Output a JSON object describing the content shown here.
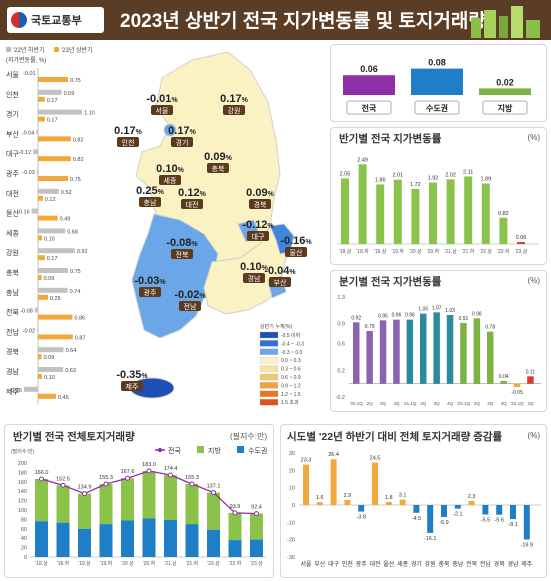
{
  "header": {
    "org": "국토교통부",
    "title": "2023년 상반기 전국 지가변동률 및 토지거래량"
  },
  "regional": {
    "legend": [
      "'22년 하반기",
      "'23년 상반기"
    ],
    "unit": "(지가변동률, %)",
    "regions": [
      "서울",
      "인천",
      "경기",
      "부산",
      "대구",
      "광주",
      "대전",
      "울산",
      "세종",
      "강원",
      "충북",
      "충남",
      "전북",
      "전남",
      "경북",
      "경남",
      "제주"
    ],
    "h2022": [
      -0.01,
      0.59,
      1.1,
      -0.04,
      -0.12,
      -0.03,
      0.52,
      -0.16,
      0.68,
      0.92,
      0.75,
      0.74,
      -0.08,
      -0.02,
      0.64,
      0.63,
      -0.35
    ],
    "h2023": [
      0.75,
      0.17,
      0.17,
      0.82,
      0.82,
      0.75,
      0.12,
      0.49,
      0.1,
      0.17,
      0.09,
      0.25,
      0.86,
      0.87,
      0.09,
      0.1,
      0.45
    ],
    "labels2022": [
      "-0.01",
      "0.59",
      "1.10",
      "-0.04",
      "-0.12",
      "-0.03",
      "0.52",
      "-0.16",
      "0.68",
      "0.92",
      "0.75",
      "0.74",
      "-0.08",
      "-0.02",
      "0.64",
      "0.63",
      "-0.35"
    ],
    "labels2023": [
      "0.75",
      "0.17",
      "0.17",
      "0.82",
      "0.82",
      "0.75",
      "0.12",
      "0.49",
      "0.10",
      "0.17",
      "0.09",
      "0.25",
      "0.86",
      "0.87",
      "0.09",
      "0.10",
      "0.45"
    ]
  },
  "map": {
    "labels": [
      {
        "name": "서울",
        "value": "-0.01"
      },
      {
        "name": "인천",
        "value": "0.17"
      },
      {
        "name": "경기",
        "value": "0.17"
      },
      {
        "name": "강원",
        "value": "0.17"
      },
      {
        "name": "세종",
        "value": "0.10"
      },
      {
        "name": "충북",
        "value": "0.09"
      },
      {
        "name": "충남",
        "value": "0.25"
      },
      {
        "name": "대전",
        "value": "0.12"
      },
      {
        "name": "경북",
        "value": "0.09"
      },
      {
        "name": "대구",
        "value": "-0.12"
      },
      {
        "name": "전북",
        "value": "-0.08"
      },
      {
        "name": "울산",
        "value": "-0.16"
      },
      {
        "name": "광주",
        "value": "-0.03"
      },
      {
        "name": "전남",
        "value": "-0.02"
      },
      {
        "name": "경남",
        "value": "0.10"
      },
      {
        "name": "부산",
        "value": "-0.04"
      },
      {
        "name": "제주",
        "value": "-0.35"
      }
    ],
    "pct": "%",
    "legend_title": "상반기 누계(%)",
    "legend_items": [
      "-0.5 이하",
      "-0.4 ~ -0.3",
      "-0.3 ~ 0.0",
      "0.0 ~ 0.3",
      "0.3 ~ 0.6",
      "0.6 ~ 0.9",
      "0.9 ~ 1.2",
      "1.2 ~ 1.5",
      "1.5 초과"
    ],
    "legend_colors": [
      "#1d4fb5",
      "#2f6fd4",
      "#6aa6e8",
      "#fbf2c4",
      "#f7e39a",
      "#f3c866",
      "#eda43d",
      "#e4791f",
      "#d9531a"
    ]
  },
  "summary": {
    "values": [
      "0.06",
      "0.08",
      "0.02"
    ],
    "categories": [
      "전국",
      "수도권",
      "지방"
    ],
    "colors": [
      "#8e2fa8",
      "#1f7fc6",
      "#7cb342"
    ]
  },
  "halfyear": {
    "title": "반기별 전국 지가변동률",
    "unit": "(%)",
    "categories": [
      "'18.상",
      "'18.하",
      "'19.상",
      "'19.하",
      "'20.상",
      "'20.하",
      "'21.상",
      "'21.하",
      "'22.상",
      "'22.하",
      "'23.상"
    ],
    "values": [
      2.05,
      2.49,
      1.86,
      2.01,
      1.72,
      1.92,
      2.02,
      2.11,
      1.89,
      0.82,
      0.06
    ],
    "labels": [
      "2.05",
      "2.49",
      "1.86",
      "2.01",
      "1.72",
      "1.92",
      "2.02",
      "2.11",
      "1.89",
      "0.82",
      "0.06"
    ]
  },
  "quarterly": {
    "title": "분기별 전국 지가변동률",
    "unit": "(%)",
    "categories": [
      "'20.1Q",
      "2Q",
      "3Q",
      "4Q",
      "'21.1Q",
      "2Q",
      "3Q",
      "4Q",
      "'22.1Q",
      "2Q",
      "3Q",
      "4Q",
      "'23.1Q",
      "2Q"
    ],
    "values": [
      0.92,
      0.79,
      0.95,
      0.96,
      0.96,
      1.05,
      1.07,
      1.03,
      0.91,
      0.98,
      0.78,
      0.04,
      -0.05,
      0.11
    ],
    "labels": [
      "0.92",
      "0.79",
      "0.95",
      "0.96",
      "0.96",
      "1.05",
      "1.07",
      "1.03",
      "0.91",
      "0.98",
      "0.78",
      "0.04",
      "-0.05",
      "0.11"
    ],
    "yticks": [
      "1.3",
      "0.9",
      "0.6",
      "0.2",
      "-0.2"
    ]
  },
  "transactions": {
    "title": "반기별 전국 전체토지거래량",
    "unit": "(필지수:만)",
    "axis_unit": "(필지수:만)",
    "legend": [
      "전국",
      "지방",
      "수도권"
    ],
    "categories": [
      "'18.상",
      "'18.하",
      "'19.상",
      "'19.하",
      "'20.상",
      "'20.하",
      "'21.상",
      "'21.하",
      "'22.상",
      "'22.하",
      "'23.상"
    ],
    "total": [
      166.0,
      152.5,
      134.9,
      155.3,
      167.6,
      183.0,
      174.4,
      155.3,
      137.1,
      93.9,
      92.4
    ],
    "total_labels": [
      "166.0",
      "152.5",
      "134.9",
      "155.3",
      "167.6",
      "183.0",
      "174.4",
      "155.3",
      "137.1",
      "93.9",
      "92.4"
    ],
    "capital": [
      76,
      73,
      60,
      70,
      78,
      82,
      79,
      70,
      58,
      36,
      37
    ],
    "yticks": [
      "200",
      "180",
      "160",
      "140",
      "120",
      "100",
      "80",
      "60",
      "40",
      "20",
      "0"
    ]
  },
  "change": {
    "title": "시도별 '22년 하반기 대비 전체 토지거래량 증감률",
    "unit": "(%)",
    "regions": [
      "서울",
      "부산",
      "대구",
      "인천",
      "광주",
      "대전",
      "울산",
      "세종",
      "경기",
      "강원",
      "충북",
      "충남",
      "전북",
      "전남",
      "경북",
      "경남",
      "제주"
    ],
    "values": [
      23.3,
      1.6,
      26.4,
      2.9,
      -3.8,
      24.5,
      1.8,
      3.1,
      -4.5,
      -16.1,
      -6.9,
      -2.1,
      2.3,
      -5.5,
      -5.6,
      -8.1,
      -19.9
    ],
    "labels": [
      "23.3",
      "1.6",
      "26.4",
      "2.9",
      "-3.8",
      "24.5",
      "1.8",
      "3.1",
      "-4.5",
      "-16.1",
      "-6.9",
      "-2.1",
      "2.3",
      "-5.5",
      "-5.6",
      "-8.1",
      "-19.9"
    ],
    "yticks": [
      "30",
      "20",
      "10",
      "0",
      "-10",
      "-20",
      "-30"
    ]
  },
  "chart_data": [
    {
      "type": "bar",
      "title": "",
      "categories": [
        "전국",
        "수도권",
        "지방"
      ],
      "values": [
        0.06,
        0.08,
        0.02
      ]
    },
    {
      "type": "bar",
      "title": "반기별 전국 지가변동률",
      "categories": [
        "'18.상",
        "'18.하",
        "'19.상",
        "'19.하",
        "'20.상",
        "'20.하",
        "'21.상",
        "'21.하",
        "'22.상",
        "'22.하",
        "'23.상"
      ],
      "values": [
        2.05,
        2.49,
        1.86,
        2.01,
        1.72,
        1.92,
        2.02,
        2.11,
        1.89,
        0.82,
        0.06
      ]
    },
    {
      "type": "bar",
      "title": "분기별 전국 지가변동률",
      "categories": [
        "'20.1Q",
        "2Q",
        "3Q",
        "4Q",
        "'21.1Q",
        "2Q",
        "3Q",
        "4Q",
        "'22.1Q",
        "2Q",
        "3Q",
        "4Q",
        "'23.1Q",
        "2Q"
      ],
      "values": [
        0.92,
        0.79,
        0.95,
        0.96,
        0.96,
        1.05,
        1.07,
        1.03,
        0.91,
        0.98,
        0.78,
        0.04,
        -0.05,
        0.11
      ],
      "ylim": [
        -0.2,
        1.3
      ]
    },
    {
      "type": "bar",
      "title": "반기별 전국 전체토지거래량",
      "categories": [
        "'18.상",
        "'18.하",
        "'19.상",
        "'19.하",
        "'20.상",
        "'20.하",
        "'21.상",
        "'21.하",
        "'22.상",
        "'22.하",
        "'23.상"
      ],
      "series": [
        {
          "name": "전국",
          "values": [
            166.0,
            152.5,
            134.9,
            155.3,
            167.6,
            183.0,
            174.4,
            155.3,
            137.1,
            93.9,
            92.4
          ]
        },
        {
          "name": "수도권",
          "values": [
            76,
            73,
            60,
            70,
            78,
            82,
            79,
            70,
            58,
            36,
            37
          ]
        }
      ],
      "ylim": [
        0,
        200
      ]
    },
    {
      "type": "bar",
      "title": "시도별 '22년 하반기 대비 전체 토지거래량 증감률",
      "categories": [
        "서울",
        "부산",
        "대구",
        "인천",
        "광주",
        "대전",
        "울산",
        "세종",
        "경기",
        "강원",
        "충북",
        "충남",
        "전북",
        "전남",
        "경북",
        "경남",
        "제주"
      ],
      "values": [
        23.3,
        1.6,
        26.4,
        2.9,
        -3.8,
        24.5,
        1.8,
        3.1,
        -4.5,
        -16.1,
        -6.9,
        -2.1,
        2.3,
        -5.5,
        -5.6,
        -8.1,
        -19.9
      ],
      "ylim": [
        -30,
        30
      ]
    }
  ]
}
